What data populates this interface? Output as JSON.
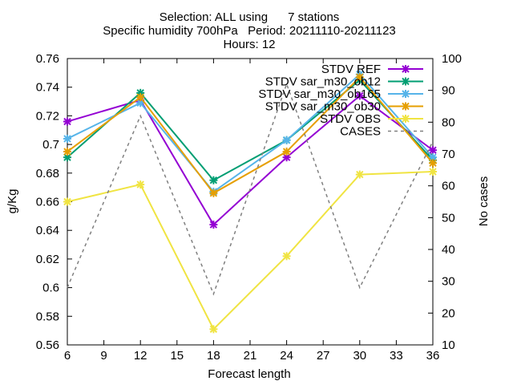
{
  "chart_data": {
    "type": "line",
    "title_lines": [
      "Selection: ALL using      7 stations",
      "Specific humidity 700hPa   Period: 20211110-20211123",
      "Hours: 12"
    ],
    "xlabel": "Forecast length",
    "ylabel": "g/Kg",
    "y2label": "No cases",
    "x": [
      6,
      12,
      18,
      24,
      30,
      36
    ],
    "xlim": [
      6,
      36
    ],
    "xticks": [
      6,
      9,
      12,
      15,
      18,
      21,
      24,
      27,
      30,
      33,
      36
    ],
    "ylim": [
      0.56,
      0.76
    ],
    "yticks": [
      0.56,
      0.58,
      0.6,
      0.62,
      0.64,
      0.66,
      0.68,
      0.7,
      0.72,
      0.74,
      0.76
    ],
    "y2lim": [
      10,
      100
    ],
    "y2ticks": [
      10,
      20,
      30,
      40,
      50,
      60,
      70,
      80,
      90,
      100
    ],
    "legend_position": "top-right",
    "series": [
      {
        "name": "STDV REF",
        "color": "#9400d3",
        "values": [
          0.716,
          0.731,
          0.644,
          0.691,
          0.734,
          0.696
        ]
      },
      {
        "name": "STDV sar_m30_ob12",
        "color": "#009e73",
        "values": [
          0.691,
          0.736,
          0.675,
          0.703,
          0.745,
          0.689
        ]
      },
      {
        "name": "STDV sar_m30_ob165",
        "color": "#56b4e9",
        "values": [
          0.704,
          0.729,
          0.667,
          0.703,
          0.749,
          0.691
        ]
      },
      {
        "name": "STDV sar_m30_ob30",
        "color": "#e69f00",
        "values": [
          0.695,
          0.733,
          0.666,
          0.695,
          0.747,
          0.687
        ]
      },
      {
        "name": "STDV OBS",
        "color": "#f0e442",
        "values": [
          0.66,
          0.672,
          0.571,
          0.622,
          0.679,
          0.681
        ]
      },
      {
        "name": "CASES",
        "color": "#808080",
        "axis": "y2",
        "dashed": true,
        "values": [
          28,
          82,
          26,
          92,
          28,
          74
        ]
      }
    ]
  }
}
